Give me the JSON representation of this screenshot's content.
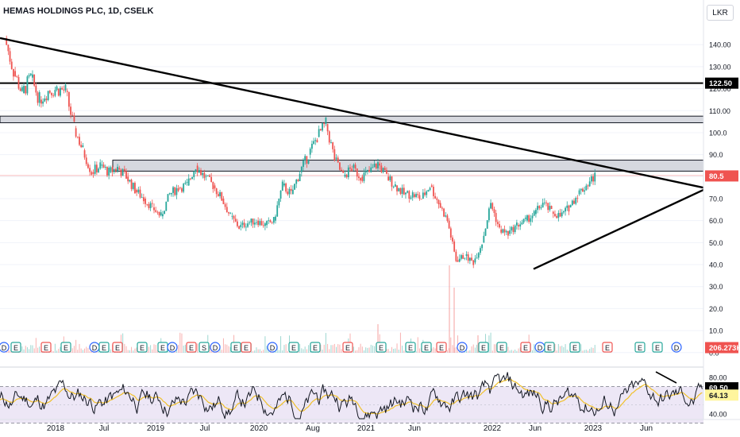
{
  "header": {
    "title": "HEMAS HOLDINGS PLC, 1D, CSELK",
    "currency_button": "LKR"
  },
  "colors": {
    "up": "#26a69a",
    "down": "#ef5350",
    "rsi_line": "#131722",
    "rsi_ma": "#f0c12c",
    "rsi_band": "#ede7f6",
    "zone_fill": "#d1d4dc",
    "trendline": "#000000"
  },
  "chart_data": [
    {
      "type": "candlestick",
      "title": "HEMAS HOLDINGS PLC, 1D, CSELK",
      "y_axis_ticks": [
        140,
        130,
        120,
        110,
        100,
        90,
        80,
        70,
        60,
        50,
        40,
        30,
        20,
        10,
        0
      ],
      "y_tick_labels": [
        "140.00",
        "130.00",
        "120.00",
        "110.00",
        "100.0",
        "90.0",
        "80.0",
        "70.0",
        "60.0",
        "50.0",
        "40.0",
        "30.0",
        "20.0",
        "10.0",
        "0.0"
      ],
      "ylim": [
        0,
        145
      ],
      "x_tick_labels": [
        "2018",
        "Jul",
        "2019",
        "Jul",
        "2020",
        "Aug",
        "2021",
        "Jun",
        "2022",
        "Jun",
        "2023",
        "Jun"
      ],
      "price_path": [
        {
          "t": "2017-11",
          "v": 143
        },
        {
          "t": "2017-12",
          "v": 128
        },
        {
          "t": "2018-01",
          "v": 118
        },
        {
          "t": "2018-02",
          "v": 125
        },
        {
          "t": "2018-03",
          "v": 115
        },
        {
          "t": "2018-04",
          "v": 119
        },
        {
          "t": "2018-05",
          "v": 120
        },
        {
          "t": "2018-06",
          "v": 119
        },
        {
          "t": "2018-07",
          "v": 102
        },
        {
          "t": "2018-08",
          "v": 92
        },
        {
          "t": "2018-09",
          "v": 82
        },
        {
          "t": "2018-10",
          "v": 85
        },
        {
          "t": "2018-11",
          "v": 82
        },
        {
          "t": "2018-12",
          "v": 84
        },
        {
          "t": "2019-01",
          "v": 80
        },
        {
          "t": "2019-02",
          "v": 74
        },
        {
          "t": "2019-03",
          "v": 70
        },
        {
          "t": "2019-04",
          "v": 66
        },
        {
          "t": "2019-05",
          "v": 62
        },
        {
          "t": "2019-06",
          "v": 72
        },
        {
          "t": "2019-07",
          "v": 75
        },
        {
          "t": "2019-08",
          "v": 76
        },
        {
          "t": "2019-09",
          "v": 85
        },
        {
          "t": "2019-10",
          "v": 80
        },
        {
          "t": "2019-11",
          "v": 76
        },
        {
          "t": "2019-12",
          "v": 70
        },
        {
          "t": "2020-01",
          "v": 62
        },
        {
          "t": "2020-02",
          "v": 57
        },
        {
          "t": "2020-03",
          "v": 59
        },
        {
          "t": "2020-04",
          "v": 60
        },
        {
          "t": "2020-05",
          "v": 58
        },
        {
          "t": "2020-06",
          "v": 60
        },
        {
          "t": "2020-07",
          "v": 76
        },
        {
          "t": "2020-08",
          "v": 72
        },
        {
          "t": "2020-09",
          "v": 82
        },
        {
          "t": "2020-10",
          "v": 90
        },
        {
          "t": "2020-11",
          "v": 98
        },
        {
          "t": "2020-12",
          "v": 104
        },
        {
          "t": "2021-01",
          "v": 88
        },
        {
          "t": "2021-02",
          "v": 80
        },
        {
          "t": "2021-03",
          "v": 84
        },
        {
          "t": "2021-04",
          "v": 80
        },
        {
          "t": "2021-05",
          "v": 82
        },
        {
          "t": "2021-06",
          "v": 86
        },
        {
          "t": "2021-07",
          "v": 80
        },
        {
          "t": "2021-08",
          "v": 76
        },
        {
          "t": "2021-09",
          "v": 72
        },
        {
          "t": "2021-10",
          "v": 72
        },
        {
          "t": "2021-11",
          "v": 70
        },
        {
          "t": "2021-12",
          "v": 76
        },
        {
          "t": "2022-01",
          "v": 68
        },
        {
          "t": "2022-02",
          "v": 60
        },
        {
          "t": "2022-03",
          "v": 42
        },
        {
          "t": "2022-04",
          "v": 44
        },
        {
          "t": "2022-05",
          "v": 41
        },
        {
          "t": "2022-06",
          "v": 50
        },
        {
          "t": "2022-07",
          "v": 68
        },
        {
          "t": "2022-08",
          "v": 56
        },
        {
          "t": "2022-09",
          "v": 54
        },
        {
          "t": "2022-10",
          "v": 58
        },
        {
          "t": "2022-11",
          "v": 60
        },
        {
          "t": "2022-12",
          "v": 63
        },
        {
          "t": "2023-01",
          "v": 68
        },
        {
          "t": "2023-02",
          "v": 64
        },
        {
          "t": "2023-03",
          "v": 62
        },
        {
          "t": "2023-04",
          "v": 66
        },
        {
          "t": "2023-05",
          "v": 72
        },
        {
          "t": "2023-06",
          "v": 76
        },
        {
          "t": "2023-07",
          "v": 80.5
        }
      ],
      "last_price_label": "80.5",
      "horizontal_level_label": "122.50",
      "horizontal_level": 122.5,
      "resistance_zones": [
        {
          "from": 104.5,
          "to": 107.5
        },
        {
          "from": 82.5,
          "to": 87.5
        }
      ],
      "trendlines": [
        {
          "from": {
            "t": "2017-11",
            "v": 143
          },
          "to": {
            "t": "2023-09",
            "v": 75
          }
        },
        {
          "from": {
            "t": "2022-05",
            "v": 38
          },
          "to": {
            "t": "2023-09",
            "v": 74
          }
        }
      ],
      "volume_label": "206.273K"
    },
    {
      "type": "line",
      "title": "RSI",
      "y_axis_ticks": [
        80.0,
        40.0
      ],
      "y_tick_labels": [
        "80.00",
        "40.00"
      ],
      "band": [
        70,
        30
      ],
      "last_rsi_label": "69.50",
      "last_ma_label": "64.13"
    }
  ],
  "events": [
    "D",
    "E",
    "E",
    "E",
    "D",
    "E",
    "E",
    "E",
    "E",
    "D",
    "E",
    "S",
    "D",
    "E",
    "E",
    "D",
    "E",
    "E",
    "E",
    "E",
    "E",
    "E",
    "E",
    "D",
    "E",
    "E",
    "E",
    "D",
    "E",
    "E",
    "E",
    "E",
    "E",
    "D",
    "D",
    "E",
    "E",
    "E",
    "D",
    "E"
  ]
}
